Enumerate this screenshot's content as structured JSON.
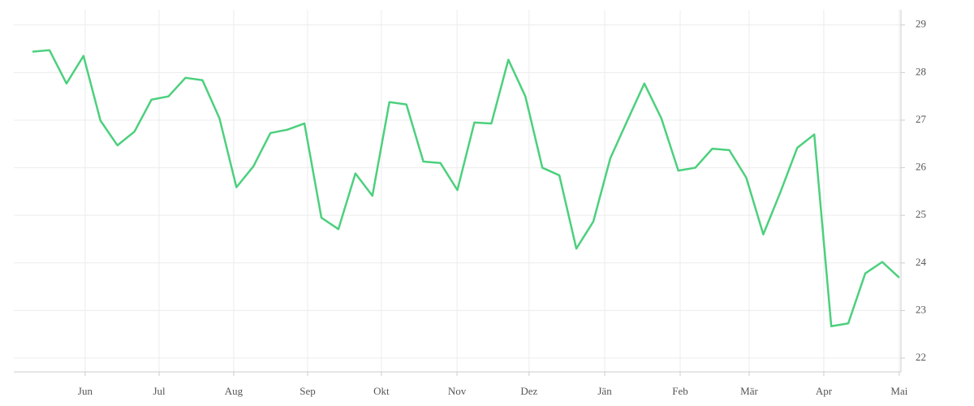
{
  "chart_data": {
    "type": "line",
    "x": [
      0,
      1,
      2,
      3,
      4,
      5,
      6,
      7,
      8,
      9,
      10,
      11,
      12,
      13,
      14,
      15,
      16,
      17,
      18,
      19,
      20,
      21,
      22,
      23,
      24,
      25,
      26,
      27,
      28,
      29,
      30,
      31,
      32,
      33,
      34,
      35,
      36,
      37,
      38,
      39,
      40,
      41,
      42,
      43,
      44,
      45,
      46,
      47,
      48,
      49,
      50,
      51
    ],
    "series": [
      {
        "color": "#4cd07d",
        "values": [
          28.44,
          28.47,
          27.77,
          28.35,
          26.99,
          26.47,
          26.76,
          27.43,
          27.5,
          27.89,
          27.84,
          27.04,
          25.59,
          26.03,
          26.73,
          26.8,
          26.93,
          24.95,
          24.71,
          25.88,
          25.41,
          27.38,
          27.33,
          26.13,
          26.1,
          25.53,
          26.95,
          26.93,
          28.27,
          27.5,
          26.0,
          25.84,
          24.3,
          24.87,
          26.2,
          26.99,
          27.77,
          27.04,
          25.94,
          26.0,
          26.4,
          26.37,
          25.79,
          24.6,
          25.48,
          26.42,
          26.7,
          22.67,
          22.73,
          23.78,
          24.02,
          23.69
        ]
      }
    ],
    "xlim": [
      -1.1,
      51.1
    ],
    "xticks": [
      {
        "value": 3.1,
        "label": "Jun"
      },
      {
        "value": 7.45,
        "label": "Jul"
      },
      {
        "value": 11.84,
        "label": "Aug"
      },
      {
        "value": 16.19,
        "label": "Sep"
      },
      {
        "value": 20.53,
        "label": "Okt"
      },
      {
        "value": 24.98,
        "label": "Nov"
      },
      {
        "value": 29.22,
        "label": "Dez"
      },
      {
        "value": 33.67,
        "label": "Jän"
      },
      {
        "value": 38.11,
        "label": "Feb"
      },
      {
        "value": 42.17,
        "label": "Mär"
      },
      {
        "value": 46.56,
        "label": "Apr"
      },
      {
        "value": 51.0,
        "label": "Mai"
      }
    ],
    "ylim": [
      21.71,
      29.32
    ],
    "yticks": [
      22,
      23,
      24,
      25,
      26,
      27,
      28,
      29
    ],
    "grid": true
  }
}
